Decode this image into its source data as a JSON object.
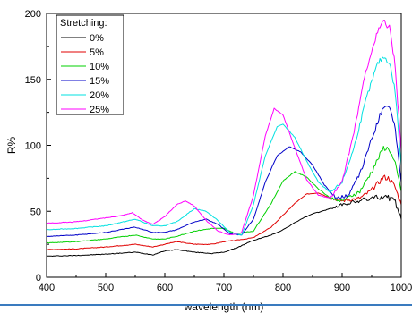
{
  "chart_data": {
    "type": "line",
    "title": "",
    "xlabel": "wavelength (nm)",
    "ylabel": "R%",
    "xlim": [
      400,
      1000
    ],
    "ylim": [
      0,
      200
    ],
    "xticks": [
      "400",
      "500",
      "600",
      "700",
      "800",
      "900",
      "1000"
    ],
    "yticks": [
      "0",
      "50",
      "100",
      "150",
      "200"
    ],
    "grid": false,
    "legend": {
      "title": "Stretching:",
      "placement": "top-left"
    },
    "series": [
      {
        "name": "0%",
        "color": "#000000",
        "x": [
          400,
          450,
          500,
          550,
          580,
          600,
          620,
          650,
          680,
          700,
          720,
          750,
          780,
          800,
          830,
          850,
          880,
          900,
          930,
          950,
          970,
          980,
          990,
          1000
        ],
        "y": [
          16,
          16.5,
          17.5,
          19,
          17,
          20,
          21,
          19,
          18,
          19,
          22,
          28,
          32,
          36,
          44,
          48,
          52,
          55,
          58,
          60,
          61,
          60,
          57,
          44
        ]
      },
      {
        "name": "5%",
        "color": "#e00000",
        "x": [
          400,
          450,
          500,
          550,
          580,
          600,
          620,
          650,
          680,
          700,
          720,
          750,
          780,
          800,
          820,
          840,
          860,
          880,
          900,
          930,
          950,
          970,
          980,
          990,
          1000
        ],
        "y": [
          21,
          21.5,
          23,
          25,
          23,
          25,
          27,
          25,
          25,
          27,
          28,
          30,
          38,
          47,
          56,
          63,
          64,
          60,
          58,
          60,
          66,
          76,
          75,
          68,
          55
        ]
      },
      {
        "name": "10%",
        "color": "#00d000",
        "x": [
          400,
          450,
          500,
          550,
          580,
          600,
          620,
          650,
          680,
          700,
          720,
          750,
          780,
          800,
          820,
          840,
          860,
          880,
          900,
          930,
          950,
          970,
          980,
          990,
          1000
        ],
        "y": [
          26,
          27,
          29,
          32,
          29,
          29,
          31,
          35,
          37,
          37,
          33,
          35,
          56,
          73,
          80,
          76,
          67,
          60,
          58,
          65,
          80,
          98,
          97,
          85,
          65
        ]
      },
      {
        "name": "15%",
        "color": "#0000c8",
        "x": [
          400,
          450,
          500,
          550,
          580,
          600,
          620,
          650,
          670,
          690,
          710,
          730,
          750,
          770,
          790,
          810,
          830,
          850,
          870,
          890,
          910,
          930,
          950,
          970,
          980,
          990,
          1000
        ],
        "y": [
          31,
          32,
          34,
          38,
          34,
          34,
          36,
          42,
          44,
          40,
          33,
          32,
          44,
          72,
          92,
          99,
          95,
          85,
          70,
          60,
          62,
          78,
          105,
          130,
          130,
          112,
          72
        ]
      },
      {
        "name": "20%",
        "color": "#00e0e0",
        "x": [
          400,
          450,
          500,
          550,
          580,
          600,
          620,
          650,
          670,
          690,
          710,
          730,
          750,
          770,
          790,
          800,
          820,
          840,
          860,
          880,
          900,
          920,
          940,
          960,
          970,
          980,
          990,
          1000
        ],
        "y": [
          36,
          37,
          39,
          44,
          39,
          39,
          42,
          52,
          50,
          43,
          34,
          32,
          55,
          92,
          114,
          116,
          106,
          88,
          72,
          64,
          72,
          98,
          134,
          162,
          167,
          163,
          140,
          85
        ]
      },
      {
        "name": "25%",
        "color": "#ff00ff",
        "x": [
          400,
          450,
          500,
          530,
          545,
          560,
          580,
          600,
          620,
          635,
          650,
          670,
          690,
          710,
          730,
          750,
          770,
          785,
          800,
          820,
          840,
          860,
          880,
          900,
          920,
          940,
          960,
          970,
          980,
          990,
          1000
        ],
        "y": [
          41,
          42,
          45,
          47,
          49,
          44,
          40,
          46,
          55,
          58,
          54,
          43,
          35,
          32,
          34,
          62,
          107,
          128,
          123,
          98,
          74,
          62,
          60,
          72,
          110,
          156,
          186,
          194,
          189,
          160,
          95
        ]
      }
    ]
  }
}
